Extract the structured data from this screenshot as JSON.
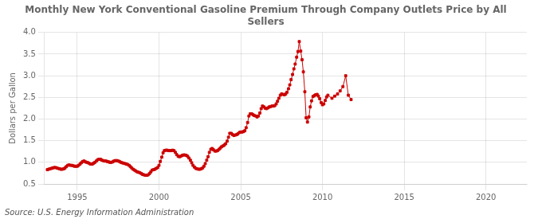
{
  "chart_data": {
    "type": "line",
    "title": "Monthly New York Conventional Gasoline Premium Through Company Outlets Price by All\nSellers",
    "ylabel": "Dollars per Gallon",
    "annotation": "Source: U.S. Energy Information Administration",
    "color": "#CC0000",
    "marker": "square",
    "line_style": "solid",
    "grid": true,
    "xlim": [
      1993.0,
      2022.5
    ],
    "xticks": [
      1995,
      2000,
      2005,
      2010,
      2015,
      2020
    ],
    "ylim": [
      0.5,
      4.0
    ],
    "yticks": [
      0.5,
      {
        "value": 1.0,
        "label": "1.0"
      },
      1.5,
      {
        "value": 2.0,
        "label": "2.0"
      },
      2.5,
      {
        "value": 3.0,
        "label": "3.0"
      },
      3.5,
      {
        "value": 4.0,
        "label": "4.0"
      }
    ],
    "x": [
      1993.17,
      1993.25,
      1993.33,
      1993.42,
      1993.5,
      1993.58,
      1993.67,
      1993.75,
      1993.83,
      1993.92,
      1994.0,
      1994.08,
      1994.17,
      1994.25,
      1994.33,
      1994.42,
      1994.5,
      1994.58,
      1994.67,
      1994.75,
      1994.83,
      1994.92,
      1995.0,
      1995.08,
      1995.17,
      1995.25,
      1995.33,
      1995.42,
      1995.5,
      1995.58,
      1995.67,
      1995.75,
      1995.83,
      1995.92,
      1996.0,
      1996.08,
      1996.17,
      1996.25,
      1996.33,
      1996.42,
      1996.5,
      1996.58,
      1996.67,
      1996.75,
      1996.83,
      1996.92,
      1997.0,
      1997.08,
      1997.17,
      1997.25,
      1997.33,
      1997.42,
      1997.5,
      1997.58,
      1997.67,
      1997.75,
      1997.83,
      1997.92,
      1998.0,
      1998.08,
      1998.17,
      1998.25,
      1998.33,
      1998.42,
      1998.5,
      1998.58,
      1998.67,
      1998.75,
      1998.83,
      1998.92,
      1999.0,
      1999.08,
      1999.17,
      1999.25,
      1999.33,
      1999.42,
      1999.5,
      1999.58,
      1999.67,
      1999.75,
      1999.83,
      1999.92,
      2000.0,
      2000.08,
      2000.17,
      2000.25,
      2000.33,
      2000.42,
      2000.5,
      2000.58,
      2000.67,
      2000.75,
      2000.83,
      2000.92,
      2001.0,
      2001.08,
      2001.17,
      2001.25,
      2001.33,
      2001.42,
      2001.5,
      2001.58,
      2001.67,
      2001.75,
      2001.83,
      2001.92,
      2002.0,
      2002.08,
      2002.17,
      2002.25,
      2002.33,
      2002.42,
      2002.5,
      2002.58,
      2002.67,
      2002.75,
      2002.83,
      2002.92,
      2003.0,
      2003.08,
      2003.17,
      2003.25,
      2003.33,
      2003.42,
      2003.5,
      2003.58,
      2003.67,
      2003.75,
      2003.83,
      2003.92,
      2004.0,
      2004.08,
      2004.17,
      2004.25,
      2004.33,
      2004.42,
      2004.5,
      2004.58,
      2004.67,
      2004.75,
      2004.83,
      2004.92,
      2005.0,
      2005.08,
      2005.17,
      2005.25,
      2005.33,
      2005.42,
      2005.5,
      2005.58,
      2005.67,
      2005.75,
      2005.83,
      2005.92,
      2006.0,
      2006.08,
      2006.17,
      2006.25,
      2006.33,
      2006.42,
      2006.5,
      2006.58,
      2006.67,
      2006.75,
      2006.83,
      2006.92,
      2007.0,
      2007.08,
      2007.17,
      2007.25,
      2007.33,
      2007.42,
      2007.5,
      2007.58,
      2007.67,
      2007.75,
      2007.83,
      2007.92,
      2008.0,
      2008.08,
      2008.17,
      2008.25,
      2008.33,
      2008.42,
      2008.5,
      2008.58,
      2008.67,
      2008.75,
      2008.83,
      2008.92,
      2009.0,
      2009.08,
      2009.17,
      2009.25,
      2009.33,
      2009.42,
      2009.5,
      2009.58,
      2009.67,
      2009.75,
      2009.83,
      2009.92,
      2010.0,
      2010.08,
      2010.17,
      2010.25,
      2010.33,
      2010.58,
      2010.75,
      2010.92,
      2011.08,
      2011.25,
      2011.42,
      2011.58,
      2011.75
    ],
    "values": [
      0.83,
      0.84,
      0.85,
      0.86,
      0.87,
      0.88,
      0.88,
      0.87,
      0.86,
      0.85,
      0.84,
      0.84,
      0.85,
      0.87,
      0.9,
      0.93,
      0.94,
      0.93,
      0.93,
      0.92,
      0.91,
      0.91,
      0.91,
      0.93,
      0.96,
      0.99,
      1.02,
      1.03,
      1.01,
      1.0,
      0.99,
      0.97,
      0.96,
      0.96,
      0.98,
      1.0,
      1.03,
      1.06,
      1.07,
      1.07,
      1.05,
      1.04,
      1.03,
      1.03,
      1.02,
      1.01,
      1.0,
      1.0,
      1.01,
      1.03,
      1.04,
      1.04,
      1.03,
      1.02,
      1.0,
      0.99,
      0.98,
      0.97,
      0.96,
      0.95,
      0.93,
      0.9,
      0.87,
      0.84,
      0.82,
      0.8,
      0.78,
      0.77,
      0.76,
      0.74,
      0.72,
      0.71,
      0.7,
      0.7,
      0.71,
      0.74,
      0.78,
      0.82,
      0.83,
      0.84,
      0.86,
      0.88,
      0.93,
      1.02,
      1.12,
      1.22,
      1.27,
      1.28,
      1.28,
      1.27,
      1.27,
      1.27,
      1.28,
      1.27,
      1.23,
      1.18,
      1.14,
      1.13,
      1.14,
      1.16,
      1.17,
      1.17,
      1.16,
      1.14,
      1.1,
      1.05,
      0.99,
      0.93,
      0.89,
      0.86,
      0.85,
      0.84,
      0.84,
      0.85,
      0.87,
      0.91,
      0.97,
      1.05,
      1.13,
      1.23,
      1.3,
      1.32,
      1.29,
      1.26,
      1.26,
      1.27,
      1.3,
      1.33,
      1.36,
      1.38,
      1.4,
      1.43,
      1.49,
      1.58,
      1.67,
      1.67,
      1.64,
      1.62,
      1.63,
      1.64,
      1.66,
      1.69,
      1.7,
      1.7,
      1.71,
      1.73,
      1.8,
      1.92,
      2.07,
      2.12,
      2.12,
      2.1,
      2.08,
      2.07,
      2.05,
      2.07,
      2.14,
      2.24,
      2.3,
      2.28,
      2.25,
      2.24,
      2.26,
      2.28,
      2.29,
      2.3,
      2.3,
      2.31,
      2.35,
      2.41,
      2.48,
      2.55,
      2.58,
      2.57,
      2.56,
      2.58,
      2.62,
      2.7,
      2.79,
      2.91,
      3.03,
      3.16,
      3.27,
      3.43,
      3.56,
      3.79,
      3.57,
      3.37,
      3.09,
      2.63,
      2.03,
      1.93,
      2.05,
      2.28,
      2.42,
      2.52,
      2.54,
      2.56,
      2.57,
      2.53,
      2.47,
      2.38,
      2.33,
      2.35,
      2.43,
      2.51,
      2.55,
      2.48,
      2.53,
      2.58,
      2.65,
      2.75,
      3.0,
      2.55,
      2.45
    ]
  }
}
